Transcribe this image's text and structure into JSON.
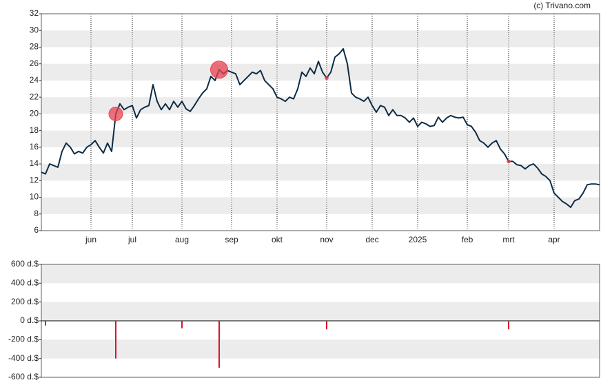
{
  "chart_data": [
    {
      "type": "line",
      "annotation": "(c) Trivano.com",
      "xlim": [
        0,
        135
      ],
      "xticks": [
        {
          "value": 12,
          "label": "jun"
        },
        {
          "value": 22,
          "label": "jul"
        },
        {
          "value": 34,
          "label": "aug"
        },
        {
          "value": 46,
          "label": "sep"
        },
        {
          "value": 57,
          "label": "okt"
        },
        {
          "value": 69,
          "label": "nov"
        },
        {
          "value": 80,
          "label": "dec"
        },
        {
          "value": 91,
          "label": "2025"
        },
        {
          "value": 103,
          "label": "feb"
        },
        {
          "value": 113,
          "label": "mrt"
        },
        {
          "value": 124,
          "label": "apr"
        }
      ],
      "ylim": [
        6,
        32
      ],
      "yticks": [
        6,
        8,
        10,
        12,
        14,
        16,
        18,
        20,
        22,
        24,
        26,
        28,
        30,
        32
      ],
      "grid": true,
      "series": [
        {
          "color": "#0d2b45",
          "values": [
            13.0,
            12.8,
            14.0,
            13.8,
            13.6,
            15.5,
            16.5,
            16.0,
            15.2,
            15.5,
            15.3,
            16.0,
            16.3,
            16.8,
            16.0,
            15.3,
            16.5,
            15.5,
            20.0,
            21.2,
            20.5,
            20.8,
            21.0,
            19.5,
            20.5,
            20.8,
            21.0,
            23.5,
            21.5,
            20.5,
            21.2,
            20.5,
            21.5,
            20.8,
            21.5,
            20.6,
            20.3,
            21.0,
            21.8,
            22.5,
            23.0,
            24.5,
            24.0,
            25.3,
            24.8,
            25.2,
            25.0,
            24.8,
            23.5,
            24.0,
            24.5,
            25.0,
            24.8,
            25.2,
            24.0,
            23.5,
            23.0,
            22.0,
            21.8,
            21.5,
            22.0,
            21.8,
            23.0,
            25.0,
            24.5,
            25.5,
            24.8,
            26.3,
            25.0,
            24.3,
            25.0,
            26.8,
            27.2,
            27.8,
            26.0,
            22.5,
            22.0,
            21.8,
            21.5,
            22.0,
            21.0,
            20.2,
            21.0,
            20.8,
            19.8,
            20.5,
            19.8,
            19.8,
            19.5,
            19.0,
            19.5,
            18.5,
            19.0,
            18.8,
            18.5,
            18.6,
            19.6,
            19.0,
            19.5,
            19.8,
            19.6,
            19.5,
            19.6,
            18.7,
            18.5,
            17.8,
            16.8,
            16.5,
            16.0,
            16.5,
            16.8,
            15.8,
            15.2,
            14.3,
            14.3,
            13.9,
            13.8,
            13.4,
            13.8,
            14.0,
            13.5,
            12.8,
            12.5,
            12.0,
            10.5,
            10.0,
            9.5,
            9.2,
            8.8,
            9.6,
            9.8,
            10.5,
            11.5,
            11.6,
            11.6,
            11.5
          ]
        }
      ],
      "markers": {
        "color": "#e8434f",
        "x": [
          18,
          43,
          69,
          113
        ],
        "values": [
          20,
          25.3,
          24.3,
          14.3
        ],
        "sizes": [
          400,
          500,
          90,
          90
        ]
      }
    },
    {
      "type": "bar",
      "xlim": [
        0,
        135
      ],
      "ylim": [
        -600,
        600
      ],
      "yticks": [
        {
          "value": -600,
          "label": "-600 d.$"
        },
        {
          "value": -400,
          "label": "-400 d.$"
        },
        {
          "value": -200,
          "label": "-200 d.$"
        },
        {
          "value": 0,
          "label": "0 d.$"
        },
        {
          "value": 200,
          "label": "200 d.$"
        },
        {
          "value": 400,
          "label": "400 d.$"
        },
        {
          "value": 600,
          "label": "600 d.$"
        }
      ],
      "grid": true,
      "color": "#e0102f",
      "x": [
        1,
        18,
        34,
        43,
        69,
        113
      ],
      "values": [
        -50,
        -400,
        -80,
        -500,
        -90,
        -90
      ]
    }
  ]
}
